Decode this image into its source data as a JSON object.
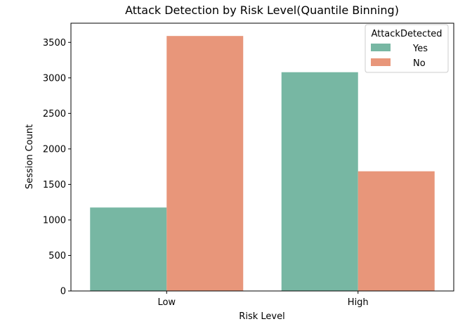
{
  "chart_data": {
    "type": "bar",
    "title": "Attack Detection by Risk Level(Quantile Binning)",
    "xlabel": "Risk Level",
    "ylabel": "Session Count",
    "categories": [
      "Low",
      "High"
    ],
    "series": [
      {
        "name": "Yes",
        "values": [
          1175,
          3080
        ],
        "color": "#77b7a3"
      },
      {
        "name": "No",
        "values": [
          3590,
          1685
        ],
        "color": "#e8967a"
      }
    ],
    "ylim": [
      0,
      3770
    ],
    "yticks": [
      0,
      500,
      1000,
      1500,
      2000,
      2500,
      3000,
      3500
    ],
    "legend": {
      "title": "AttackDetected",
      "placement": "top-right"
    },
    "grid": false
  }
}
